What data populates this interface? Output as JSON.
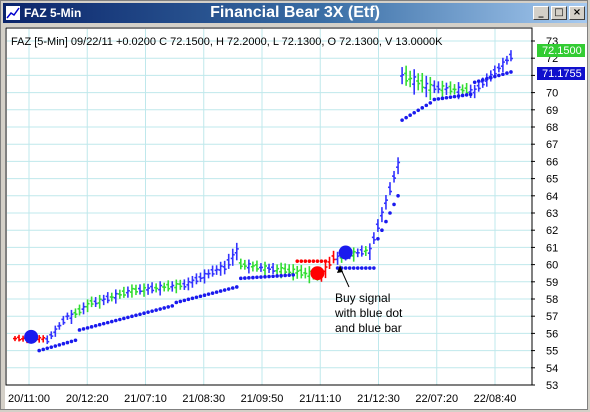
{
  "window": {
    "label": "FAZ 5-Min",
    "title": "Financial Bear 3X (Etf)",
    "buttons": {
      "minimize": "_",
      "maximize": "□",
      "close": "×"
    }
  },
  "info_line": "FAZ [5-Min] 09/22/11  +0.0200 C 72.1500, H 72.2000, L 72.1300, O 72.1300, V 13.0000K",
  "price_badges": {
    "last": "72.1500",
    "stop": "71.1755"
  },
  "annotation": [
    "Buy signal",
    "with blue dot",
    "and blue bar"
  ],
  "colors": {
    "up_bar": "#3333ff",
    "green_bar": "#33dd33",
    "red_bar": "#ff0000",
    "dot": "#1a1aee",
    "red_dot": "#ff0000",
    "grid": "#bfe8ec",
    "badge_last": "#33cc33",
    "badge_stop": "#1010cc"
  },
  "chart_data": {
    "type": "bar",
    "title": "Financial Bear 3X (Etf)",
    "ylim": [
      53,
      73
    ],
    "y_ticks": [
      "73",
      "72",
      "71",
      "70",
      "69",
      "68",
      "67",
      "66",
      "65",
      "64",
      "63",
      "62",
      "61",
      "60",
      "59",
      "58",
      "57",
      "56",
      "55",
      "54",
      "53"
    ],
    "x_ticks": [
      "20/11:00",
      "20/12:20",
      "21/07:10",
      "21/08:30",
      "21/09:50",
      "21/11:10",
      "21/12:30",
      "22/07:20",
      "22/08:40"
    ],
    "signal_markers": [
      {
        "color": "blue",
        "price": 55.8,
        "bar": 4
      },
      {
        "color": "red",
        "price": 59.5,
        "bar": 75
      },
      {
        "color": "blue",
        "price": 60.7,
        "bar": 82
      }
    ],
    "series": [
      {
        "name": "price",
        "segments": [
          {
            "from": 0,
            "to": 8,
            "start": 55.7,
            "end": 55.7,
            "color": "red",
            "vol": 0.3
          },
          {
            "from": 8,
            "to": 14,
            "start": 55.6,
            "end": 57.0,
            "color": "blue",
            "vol": 0.4
          },
          {
            "from": 14,
            "to": 20,
            "start": 57.0,
            "end": 57.8,
            "color": "mixed",
            "vol": 0.5
          },
          {
            "from": 20,
            "to": 30,
            "start": 57.8,
            "end": 58.5,
            "color": "mixed",
            "vol": 0.5
          },
          {
            "from": 30,
            "to": 42,
            "start": 58.5,
            "end": 58.8,
            "color": "mixed",
            "vol": 0.5
          },
          {
            "from": 42,
            "to": 52,
            "start": 58.8,
            "end": 59.8,
            "color": "blue",
            "vol": 0.5
          },
          {
            "from": 52,
            "to": 56,
            "start": 59.8,
            "end": 60.8,
            "color": "blue",
            "vol": 0.7
          },
          {
            "from": 56,
            "to": 66,
            "start": 60.0,
            "end": 59.7,
            "color": "mixed",
            "vol": 0.5
          },
          {
            "from": 66,
            "to": 76,
            "start": 59.7,
            "end": 59.4,
            "color": "green",
            "vol": 0.6
          },
          {
            "from": 76,
            "to": 80,
            "start": 59.4,
            "end": 60.4,
            "color": "red",
            "vol": 0.6
          },
          {
            "from": 80,
            "to": 88,
            "start": 60.4,
            "end": 60.8,
            "color": "mixed",
            "vol": 0.5
          },
          {
            "from": 88,
            "to": 96,
            "start": 60.8,
            "end": 65.8,
            "color": "blue",
            "vol": 0.6
          },
          {
            "from": 96,
            "to": 104,
            "start": 71.0,
            "end": 70.3,
            "color": "mixed",
            "vol": 0.9
          },
          {
            "from": 104,
            "to": 114,
            "start": 70.3,
            "end": 70.1,
            "color": "mixed",
            "vol": 0.6
          },
          {
            "from": 114,
            "to": 124,
            "start": 70.1,
            "end": 72.1,
            "color": "blue",
            "vol": 0.5
          }
        ]
      },
      {
        "name": "stop dots",
        "segments": [
          {
            "from": 6,
            "to": 16,
            "start": 55.0,
            "end": 55.6,
            "color": "blue"
          },
          {
            "from": 16,
            "to": 40,
            "start": 56.2,
            "end": 57.6,
            "color": "blue"
          },
          {
            "from": 40,
            "to": 56,
            "start": 57.8,
            "end": 58.7,
            "color": "blue"
          },
          {
            "from": 56,
            "to": 70,
            "start": 59.2,
            "end": 59.4,
            "color": "blue"
          },
          {
            "from": 70,
            "to": 78,
            "start": 60.2,
            "end": 60.2,
            "color": "red"
          },
          {
            "from": 80,
            "to": 90,
            "start": 59.8,
            "end": 59.8,
            "color": "blue"
          },
          {
            "from": 90,
            "to": 96,
            "start": 61.5,
            "end": 64.0,
            "color": "blue"
          },
          {
            "from": 96,
            "to": 104,
            "start": 68.4,
            "end": 69.4,
            "color": "blue"
          },
          {
            "from": 104,
            "to": 114,
            "start": 69.6,
            "end": 69.9,
            "color": "blue"
          },
          {
            "from": 114,
            "to": 124,
            "start": 70.6,
            "end": 71.2,
            "color": "blue"
          }
        ]
      }
    ]
  }
}
